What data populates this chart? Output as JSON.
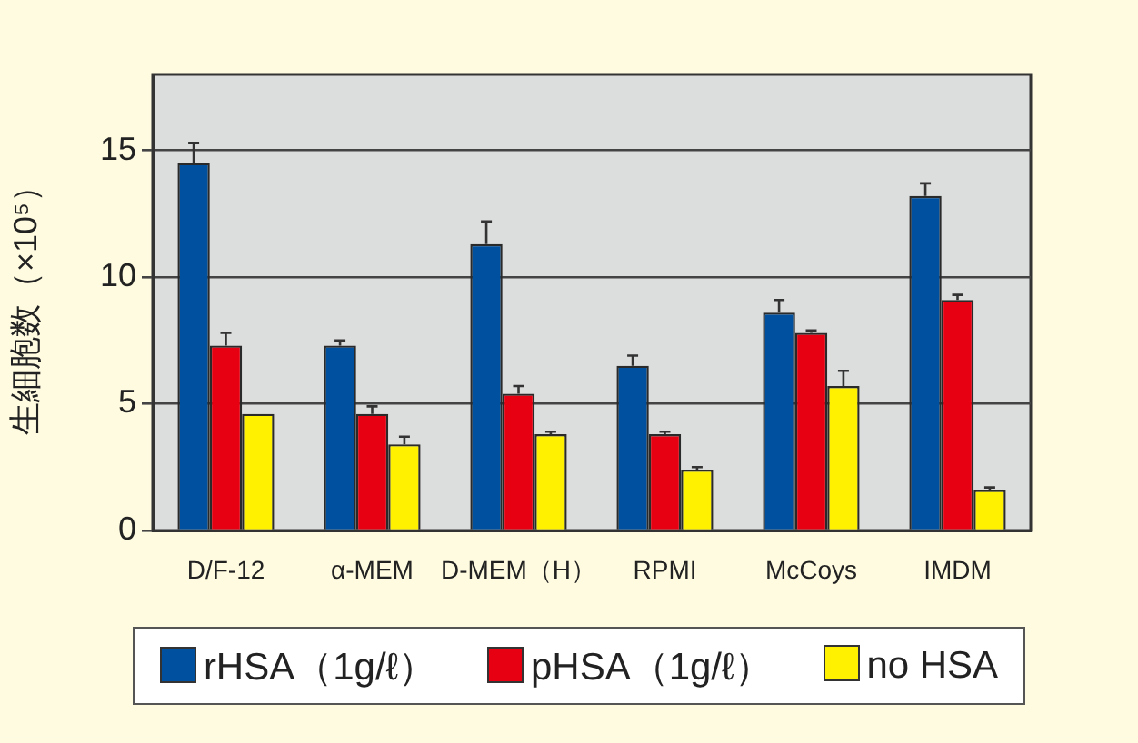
{
  "chart_data": {
    "type": "bar",
    "ylabel": "生細胞数（×10⁵）",
    "categories": [
      "D/F-12",
      "α-MEM",
      "D-MEM（H）",
      "RPMI",
      "McCoys",
      "IMDM"
    ],
    "series": [
      {
        "name": "rHSA（1g/ℓ）",
        "color": "#0050a0",
        "values": [
          14.5,
          7.3,
          11.3,
          6.5,
          8.6,
          13.2
        ],
        "errors": [
          [
            14.5,
            15.3
          ],
          [
            7.3,
            7.5
          ],
          [
            11.3,
            12.2
          ],
          [
            6.5,
            6.9
          ],
          [
            8.6,
            9.1
          ],
          [
            13.2,
            13.7
          ]
        ]
      },
      {
        "name": "pHSA（1g/ℓ）",
        "color": "#e60012",
        "values": [
          7.3,
          4.6,
          5.4,
          3.8,
          7.8,
          9.1
        ],
        "errors": [
          [
            7.3,
            7.8
          ],
          [
            4.6,
            4.9
          ],
          [
            5.4,
            5.7
          ],
          [
            3.8,
            3.9
          ],
          [
            7.8,
            7.9
          ],
          [
            9.1,
            9.3
          ]
        ]
      },
      {
        "name": "no HSA",
        "color": "#fff100",
        "values": [
          4.6,
          3.4,
          3.8,
          2.4,
          5.7,
          1.6
        ],
        "errors": [
          null,
          [
            3.4,
            3.7
          ],
          [
            3.8,
            3.9
          ],
          [
            2.4,
            2.5
          ],
          [
            5.7,
            6.3
          ],
          [
            1.6,
            1.7
          ]
        ]
      }
    ],
    "ylim": [
      0,
      18
    ],
    "yticks": [
      0,
      5,
      10,
      15
    ],
    "grid": "y",
    "legend": "bottom"
  }
}
